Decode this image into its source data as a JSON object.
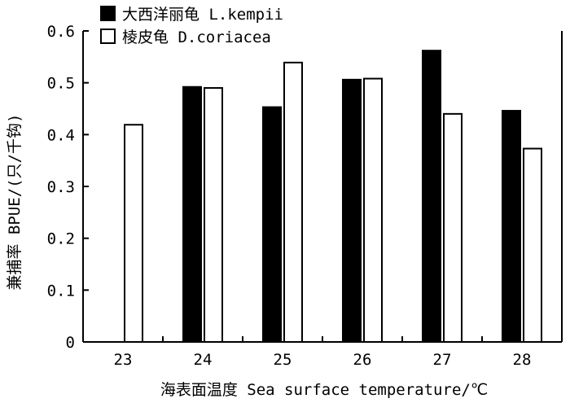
{
  "chart_data": {
    "type": "bar",
    "categories": [
      "23",
      "24",
      "25",
      "26",
      "27",
      "28"
    ],
    "series": [
      {
        "name": "大西洋丽龟 L.kempii",
        "values": [
          null,
          0.492,
          0.453,
          0.506,
          0.562,
          0.446
        ],
        "color": "#000000"
      },
      {
        "name": "棱皮龟 D.coriacea",
        "values": [
          0.419,
          0.49,
          0.539,
          0.508,
          0.44,
          0.373
        ],
        "color": "#ffffff"
      }
    ],
    "xlabel": "海表面温度 Sea surface temperature/℃",
    "ylabel": "兼捕率 BPUE/(只/千钩)",
    "ylim": [
      0,
      0.6
    ],
    "yticks": [
      "0",
      "0.1",
      "0.2",
      "0.3",
      "0.4",
      "0.5",
      "0.6"
    ],
    "grid": false,
    "legend_position": "top-left"
  }
}
